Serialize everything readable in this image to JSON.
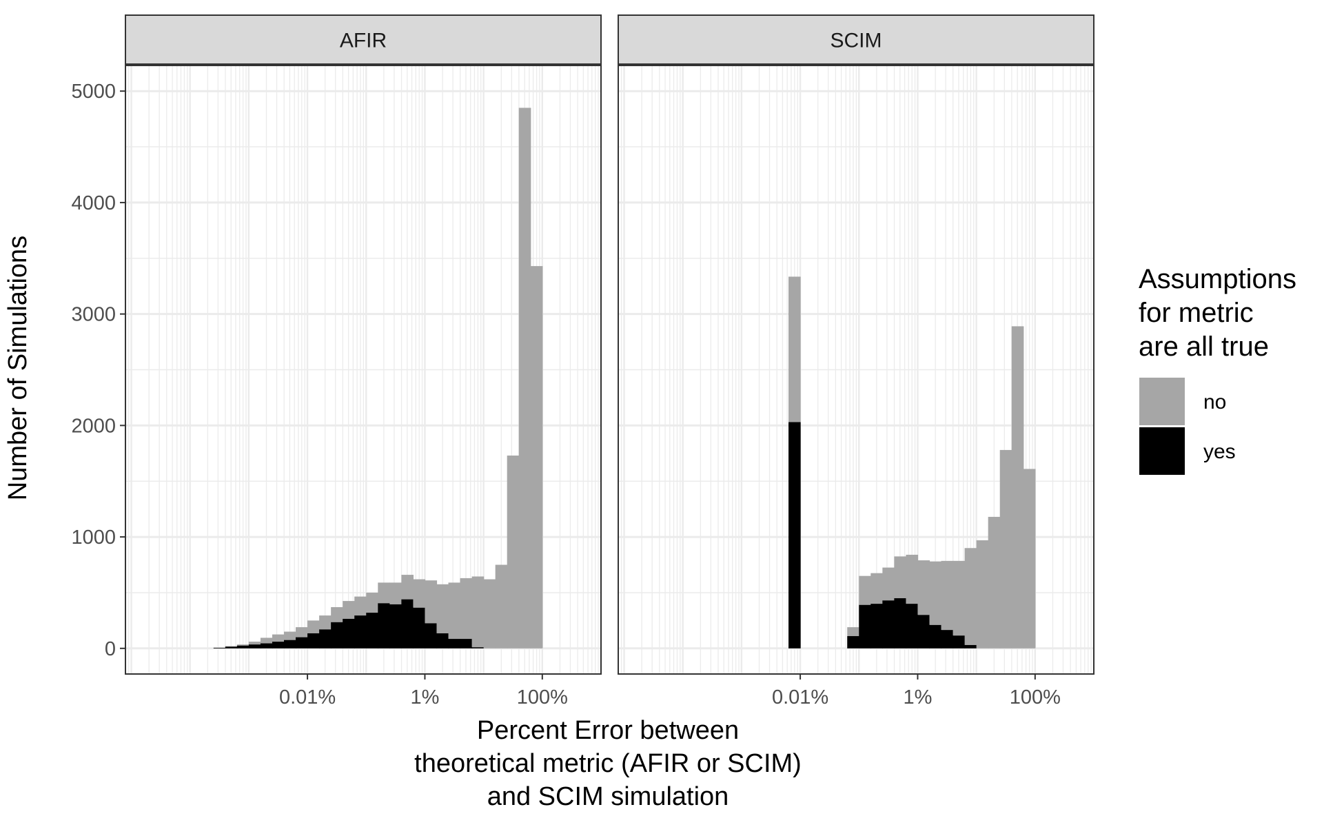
{
  "chart_data": {
    "type": "bar",
    "subtype": "stacked-histogram",
    "x_scale": "log10",
    "xlim_log10_percent": [
      -5.1,
      3.0
    ],
    "ylim": [
      -230,
      5230
    ],
    "grid": true,
    "legend_position": "right",
    "xlabel": [
      "Percent Error between",
      "theoretical metric (AFIR or SCIM)",
      "and SCIM simulation"
    ],
    "ylabel": "Number of Simulations",
    "x_ticks": [
      {
        "log10": -2,
        "label": "0.01%"
      },
      {
        "log10": 0,
        "label": "1%"
      },
      {
        "log10": 2,
        "label": "100%"
      }
    ],
    "y_ticks": [
      0,
      1000,
      2000,
      3000,
      4000,
      5000
    ],
    "legend": {
      "title": [
        "Assumptions",
        "for metric",
        "are all true"
      ],
      "entries": [
        {
          "key": "no",
          "label": "no",
          "color": "#a6a6a6"
        },
        {
          "key": "yes",
          "label": "yes",
          "color": "#000000"
        }
      ]
    },
    "bin_width_log10": 0.2,
    "panels": [
      {
        "strip": "AFIR",
        "bins": [
          {
            "x": -3.5,
            "no": 2,
            "yes": 5
          },
          {
            "x": -3.3,
            "no": 5,
            "yes": 15
          },
          {
            "x": -3.1,
            "no": 10,
            "yes": 25
          },
          {
            "x": -2.9,
            "no": 25,
            "yes": 35
          },
          {
            "x": -2.7,
            "no": 50,
            "yes": 45
          },
          {
            "x": -2.5,
            "no": 65,
            "yes": 60
          },
          {
            "x": -2.3,
            "no": 75,
            "yes": 75
          },
          {
            "x": -2.1,
            "no": 90,
            "yes": 100
          },
          {
            "x": -1.9,
            "no": 115,
            "yes": 135
          },
          {
            "x": -1.7,
            "no": 125,
            "yes": 170
          },
          {
            "x": -1.5,
            "no": 135,
            "yes": 235
          },
          {
            "x": -1.3,
            "no": 160,
            "yes": 265
          },
          {
            "x": -1.1,
            "no": 170,
            "yes": 295
          },
          {
            "x": -0.9,
            "no": 180,
            "yes": 320
          },
          {
            "x": -0.7,
            "no": 185,
            "yes": 405
          },
          {
            "x": -0.5,
            "no": 195,
            "yes": 395
          },
          {
            "x": -0.3,
            "no": 220,
            "yes": 440
          },
          {
            "x": -0.1,
            "no": 255,
            "yes": 365
          },
          {
            "x": 0.1,
            "no": 385,
            "yes": 225
          },
          {
            "x": 0.3,
            "no": 440,
            "yes": 135
          },
          {
            "x": 0.5,
            "no": 505,
            "yes": 85
          },
          {
            "x": 0.7,
            "no": 545,
            "yes": 85
          },
          {
            "x": 0.9,
            "no": 635,
            "yes": 10
          },
          {
            "x": 1.1,
            "no": 620,
            "yes": 0
          },
          {
            "x": 1.3,
            "no": 750,
            "yes": 0
          },
          {
            "x": 1.5,
            "no": 1730,
            "yes": 0
          },
          {
            "x": 1.7,
            "no": 4850,
            "yes": 0
          },
          {
            "x": 1.9,
            "no": 3430,
            "yes": 0
          }
        ]
      },
      {
        "strip": "SCIM",
        "bins": [
          {
            "x": -2.1,
            "no": 1305,
            "yes": 2030
          },
          {
            "x": -1.1,
            "no": 80,
            "yes": 110
          },
          {
            "x": -0.9,
            "no": 260,
            "yes": 390
          },
          {
            "x": -0.7,
            "no": 275,
            "yes": 400
          },
          {
            "x": -0.5,
            "no": 295,
            "yes": 430
          },
          {
            "x": -0.3,
            "no": 375,
            "yes": 450
          },
          {
            "x": -0.1,
            "no": 440,
            "yes": 400
          },
          {
            "x": 0.1,
            "no": 490,
            "yes": 300
          },
          {
            "x": 0.3,
            "no": 570,
            "yes": 210
          },
          {
            "x": 0.5,
            "no": 620,
            "yes": 165
          },
          {
            "x": 0.7,
            "no": 670,
            "yes": 115
          },
          {
            "x": 0.9,
            "no": 870,
            "yes": 30
          },
          {
            "x": 1.1,
            "no": 970,
            "yes": 0
          },
          {
            "x": 1.3,
            "no": 1180,
            "yes": 0
          },
          {
            "x": 1.5,
            "no": 1780,
            "yes": 0
          },
          {
            "x": 1.7,
            "no": 2890,
            "yes": 0
          },
          {
            "x": 1.9,
            "no": 1610,
            "yes": 0
          }
        ]
      }
    ]
  }
}
